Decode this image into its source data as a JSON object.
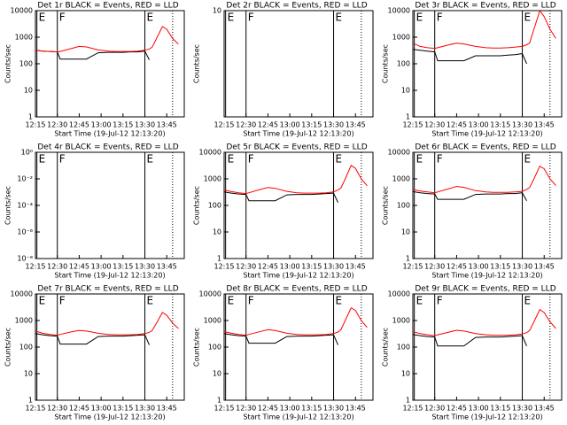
{
  "chart_data": [
    {
      "type": "line",
      "title": "Det 1r BLACK = Events, RED = LLD",
      "x_label": "Start Time (19-Jul-12 12:13:20)",
      "y_label": "Counts/sec",
      "log_y": true,
      "xlim": [
        735,
        837
      ],
      "xticks": [
        {
          "value": 735,
          "label": "12:15"
        },
        {
          "value": 750,
          "label": "12:30"
        },
        {
          "value": 765,
          "label": "12:45"
        },
        {
          "value": 780,
          "label": "13:00"
        },
        {
          "value": 795,
          "label": "13:15"
        },
        {
          "value": 810,
          "label": "13:30"
        },
        {
          "value": 825,
          "label": "13:45"
        }
      ],
      "ylim": [
        1,
        10000
      ],
      "yticks": [
        1,
        10,
        100,
        1000,
        10000
      ],
      "markers": [
        {
          "x": 736,
          "label": "E"
        },
        {
          "x": 750,
          "label": "F"
        },
        {
          "x": 810,
          "label": "E"
        }
      ],
      "dotted_lines": [
        829
      ],
      "x": [
        735,
        740,
        745,
        750,
        752,
        760,
        765,
        770,
        778,
        785,
        790,
        795,
        800,
        805,
        810,
        813,
        815,
        818,
        822,
        825,
        829,
        833
      ],
      "series": [
        {
          "color": "#000000",
          "values": [
            320,
            300,
            290,
            280,
            150,
            150,
            150,
            150,
            260,
            270,
            270,
            270,
            280,
            280,
            300,
            140,
            null,
            null,
            null,
            null,
            null,
            null
          ]
        },
        {
          "color": "#ff0000",
          "values": [
            320,
            300,
            290,
            280,
            290,
            380,
            450,
            430,
            330,
            300,
            290,
            290,
            290,
            300,
            320,
            360,
            420,
            900,
            2500,
            2000,
            900,
            550
          ]
        }
      ]
    },
    {
      "type": "line",
      "title": "Det 2r BLACK = Events, RED = LLD",
      "x_label": "Start Time (19-Jul-12 12:13:20)",
      "y_label": "Counts/sec",
      "log_y": true,
      "xlim": [
        735,
        837
      ],
      "xticks": [
        {
          "value": 735,
          "label": "12:15"
        },
        {
          "value": 750,
          "label": "12:30"
        },
        {
          "value": 765,
          "label": "12:45"
        },
        {
          "value": 780,
          "label": "13:00"
        },
        {
          "value": 795,
          "label": "13:15"
        },
        {
          "value": 810,
          "label": "13:30"
        },
        {
          "value": 825,
          "label": "13:45"
        }
      ],
      "ylim": [
        1,
        10
      ],
      "yticks": [
        10
      ],
      "markers": [
        {
          "x": 736,
          "label": "E"
        },
        {
          "x": 750,
          "label": "F"
        },
        {
          "x": 810,
          "label": "E"
        }
      ],
      "dotted_lines": [
        829
      ],
      "x": [],
      "series": []
    },
    {
      "type": "line",
      "title": "Det 3r BLACK = Events, RED = LLD",
      "x_label": "Start Time (19-Jul-12 12:13:20)",
      "y_label": "Counts/sec",
      "log_y": true,
      "xlim": [
        735,
        837
      ],
      "xticks": [
        {
          "value": 735,
          "label": "12:15"
        },
        {
          "value": 750,
          "label": "12:30"
        },
        {
          "value": 765,
          "label": "12:45"
        },
        {
          "value": 780,
          "label": "13:00"
        },
        {
          "value": 795,
          "label": "13:15"
        },
        {
          "value": 810,
          "label": "13:30"
        },
        {
          "value": 825,
          "label": "13:45"
        }
      ],
      "ylim": [
        1,
        10000
      ],
      "yticks": [
        1,
        10,
        100,
        1000,
        10000
      ],
      "markers": [
        {
          "x": 736,
          "label": "E"
        },
        {
          "x": 750,
          "label": "F"
        },
        {
          "x": 810,
          "label": "E"
        }
      ],
      "dotted_lines": [
        829
      ],
      "x": [
        735,
        740,
        745,
        750,
        752,
        760,
        765,
        770,
        778,
        785,
        790,
        795,
        800,
        805,
        810,
        813,
        815,
        818,
        822,
        825,
        829,
        833
      ],
      "series": [
        {
          "color": "#000000",
          "values": [
            350,
            320,
            300,
            280,
            130,
            130,
            130,
            130,
            200,
            200,
            200,
            200,
            210,
            220,
            240,
            100,
            null,
            null,
            null,
            null,
            null,
            null
          ]
        },
        {
          "color": "#ff0000",
          "values": [
            600,
            450,
            400,
            380,
            400,
            520,
            600,
            560,
            450,
            400,
            390,
            390,
            400,
            420,
            450,
            520,
            600,
            2000,
            10000,
            6000,
            2000,
            900
          ]
        }
      ]
    },
    {
      "type": "line",
      "title": "Det 4r BLACK = Events, RED = LLD",
      "x_label": "Start Time (19-Jul-12 12:13:20)",
      "y_label": "Counts/sec",
      "log_y": true,
      "xlim": [
        735,
        837
      ],
      "xticks": [
        {
          "value": 735,
          "label": "12:15"
        },
        {
          "value": 750,
          "label": "12:30"
        },
        {
          "value": 765,
          "label": "12:45"
        },
        {
          "value": 780,
          "label": "13:00"
        },
        {
          "value": 795,
          "label": "13:15"
        },
        {
          "value": 810,
          "label": "13:30"
        },
        {
          "value": 825,
          "label": "13:45"
        }
      ],
      "ylim": [
        1e-08,
        1
      ],
      "yticks": [
        {
          "value": 1e-08,
          "label": "10⁻⁸"
        },
        {
          "value": 1e-06,
          "label": "10⁻⁶"
        },
        {
          "value": 0.0001,
          "label": "10⁻⁴"
        },
        {
          "value": 0.01,
          "label": "10⁻²"
        },
        {
          "value": 1,
          "label": "10⁰"
        }
      ],
      "markers": [
        {
          "x": 736,
          "label": "E"
        },
        {
          "x": 750,
          "label": "F"
        },
        {
          "x": 810,
          "label": "E"
        }
      ],
      "dotted_lines": [
        829
      ],
      "x": [],
      "series": []
    },
    {
      "type": "line",
      "title": "Det 5r BLACK = Events, RED = LLD",
      "x_label": "Start Time (19-Jul-12 12:13:20)",
      "y_label": "Counts/sec",
      "log_y": true,
      "xlim": [
        735,
        837
      ],
      "xticks": [
        {
          "value": 735,
          "label": "12:15"
        },
        {
          "value": 750,
          "label": "12:30"
        },
        {
          "value": 765,
          "label": "12:45"
        },
        {
          "value": 780,
          "label": "13:00"
        },
        {
          "value": 795,
          "label": "13:15"
        },
        {
          "value": 810,
          "label": "13:30"
        },
        {
          "value": 825,
          "label": "13:45"
        }
      ],
      "ylim": [
        1,
        10000
      ],
      "yticks": [
        1,
        10,
        100,
        1000,
        10000
      ],
      "markers": [
        {
          "x": 736,
          "label": "E"
        },
        {
          "x": 750,
          "label": "F"
        },
        {
          "x": 810,
          "label": "E"
        }
      ],
      "dotted_lines": [
        829
      ],
      "x": [
        735,
        740,
        745,
        750,
        752,
        760,
        765,
        770,
        778,
        785,
        790,
        795,
        800,
        805,
        810,
        813,
        815,
        818,
        822,
        825,
        829,
        833
      ],
      "series": [
        {
          "color": "#000000",
          "values": [
            320,
            290,
            270,
            260,
            150,
            150,
            150,
            150,
            250,
            260,
            260,
            260,
            270,
            280,
            290,
            130,
            null,
            null,
            null,
            null,
            null,
            null
          ]
        },
        {
          "color": "#ff0000",
          "values": [
            380,
            330,
            300,
            280,
            300,
            400,
            470,
            440,
            340,
            300,
            290,
            290,
            290,
            300,
            320,
            380,
            450,
            1000,
            3200,
            2500,
            1000,
            550
          ]
        }
      ]
    },
    {
      "type": "line",
      "title": "Det 6r BLACK = Events, RED = LLD",
      "x_label": "Start Time (19-Jul-12 12:13:20)",
      "y_label": "Counts/sec",
      "log_y": true,
      "xlim": [
        735,
        837
      ],
      "xticks": [
        {
          "value": 735,
          "label": "12:15"
        },
        {
          "value": 750,
          "label": "12:30"
        },
        {
          "value": 765,
          "label": "12:45"
        },
        {
          "value": 780,
          "label": "13:00"
        },
        {
          "value": 795,
          "label": "13:15"
        },
        {
          "value": 810,
          "label": "13:30"
        },
        {
          "value": 825,
          "label": "13:45"
        }
      ],
      "ylim": [
        1,
        10000
      ],
      "yticks": [
        1,
        10,
        100,
        1000,
        10000
      ],
      "markers": [
        {
          "x": 736,
          "label": "E"
        },
        {
          "x": 750,
          "label": "F"
        },
        {
          "x": 810,
          "label": "E"
        }
      ],
      "dotted_lines": [
        829
      ],
      "x": [
        735,
        740,
        745,
        750,
        752,
        760,
        765,
        770,
        778,
        785,
        790,
        795,
        800,
        805,
        810,
        813,
        815,
        818,
        822,
        825,
        829,
        833
      ],
      "series": [
        {
          "color": "#000000",
          "values": [
            330,
            300,
            280,
            270,
            170,
            170,
            170,
            170,
            260,
            270,
            270,
            270,
            280,
            280,
            300,
            150,
            null,
            null,
            null,
            null,
            null,
            null
          ]
        },
        {
          "color": "#ff0000",
          "values": [
            400,
            350,
            320,
            300,
            320,
            430,
            520,
            480,
            360,
            320,
            310,
            310,
            310,
            320,
            340,
            400,
            470,
            1000,
            3000,
            2400,
            1000,
            560
          ]
        }
      ]
    },
    {
      "type": "line",
      "title": "Det 7r BLACK = Events, RED = LLD",
      "x_label": "Start Time (19-Jul-12 12:13:20)",
      "y_label": "Counts/sec",
      "log_y": true,
      "xlim": [
        735,
        837
      ],
      "xticks": [
        {
          "value": 735,
          "label": "12:15"
        },
        {
          "value": 750,
          "label": "12:30"
        },
        {
          "value": 765,
          "label": "12:45"
        },
        {
          "value": 780,
          "label": "13:00"
        },
        {
          "value": 795,
          "label": "13:15"
        },
        {
          "value": 810,
          "label": "13:30"
        },
        {
          "value": 825,
          "label": "13:45"
        }
      ],
      "ylim": [
        1,
        10000
      ],
      "yticks": [
        1,
        10,
        100,
        1000,
        10000
      ],
      "markers": [
        {
          "x": 736,
          "label": "E"
        },
        {
          "x": 750,
          "label": "F"
        },
        {
          "x": 810,
          "label": "E"
        }
      ],
      "dotted_lines": [
        829
      ],
      "x": [
        735,
        740,
        745,
        750,
        752,
        760,
        765,
        770,
        778,
        785,
        790,
        795,
        800,
        805,
        810,
        813,
        815,
        818,
        822,
        825,
        829,
        833
      ],
      "series": [
        {
          "color": "#000000",
          "values": [
            320,
            290,
            270,
            260,
            130,
            130,
            130,
            130,
            250,
            260,
            260,
            260,
            270,
            280,
            290,
            120,
            null,
            null,
            null,
            null,
            null,
            null
          ]
        },
        {
          "color": "#ff0000",
          "values": [
            400,
            330,
            300,
            280,
            300,
            380,
            420,
            400,
            330,
            300,
            290,
            290,
            290,
            300,
            320,
            360,
            420,
            800,
            2000,
            1600,
            800,
            500
          ]
        }
      ]
    },
    {
      "type": "line",
      "title": "Det 8r BLACK = Events, RED = LLD",
      "x_label": "Start Time (19-Jul-12 12:13:20)",
      "y_label": "Counts/sec",
      "log_y": true,
      "xlim": [
        735,
        837
      ],
      "xticks": [
        {
          "value": 735,
          "label": "12:15"
        },
        {
          "value": 750,
          "label": "12:30"
        },
        {
          "value": 765,
          "label": "12:45"
        },
        {
          "value": 780,
          "label": "13:00"
        },
        {
          "value": 795,
          "label": "13:15"
        },
        {
          "value": 810,
          "label": "13:30"
        },
        {
          "value": 825,
          "label": "13:45"
        }
      ],
      "ylim": [
        1,
        10000
      ],
      "yticks": [
        1,
        10,
        100,
        1000,
        10000
      ],
      "markers": [
        {
          "x": 736,
          "label": "E"
        },
        {
          "x": 750,
          "label": "F"
        },
        {
          "x": 810,
          "label": "E"
        }
      ],
      "dotted_lines": [
        829
      ],
      "x": [
        735,
        740,
        745,
        750,
        752,
        760,
        765,
        770,
        778,
        785,
        790,
        795,
        800,
        805,
        810,
        813,
        815,
        818,
        822,
        825,
        829,
        833
      ],
      "series": [
        {
          "color": "#000000",
          "values": [
            320,
            290,
            270,
            260,
            140,
            140,
            140,
            140,
            250,
            260,
            260,
            260,
            270,
            280,
            290,
            120,
            null,
            null,
            null,
            null,
            null,
            null
          ]
        },
        {
          "color": "#ff0000",
          "values": [
            380,
            330,
            300,
            280,
            300,
            390,
            450,
            420,
            330,
            300,
            290,
            290,
            290,
            300,
            320,
            370,
            450,
            1000,
            3000,
            2400,
            1000,
            550
          ]
        }
      ]
    },
    {
      "type": "line",
      "title": "Det 9r BLACK = Events, RED = LLD",
      "x_label": "Start Time (19-Jul-12 12:13:20)",
      "y_label": "Counts/sec",
      "log_y": true,
      "xlim": [
        735,
        837
      ],
      "xticks": [
        {
          "value": 735,
          "label": "12:15"
        },
        {
          "value": 750,
          "label": "12:30"
        },
        {
          "value": 765,
          "label": "12:45"
        },
        {
          "value": 780,
          "label": "13:00"
        },
        {
          "value": 795,
          "label": "13:15"
        },
        {
          "value": 810,
          "label": "13:30"
        },
        {
          "value": 825,
          "label": "13:45"
        }
      ],
      "ylim": [
        1,
        10000
      ],
      "yticks": [
        1,
        10,
        100,
        1000,
        10000
      ],
      "markers": [
        {
          "x": 736,
          "label": "E"
        },
        {
          "x": 750,
          "label": "F"
        },
        {
          "x": 810,
          "label": "E"
        }
      ],
      "dotted_lines": [
        829
      ],
      "x": [
        735,
        740,
        745,
        750,
        752,
        760,
        765,
        770,
        778,
        785,
        790,
        795,
        800,
        805,
        810,
        813,
        815,
        818,
        822,
        825,
        829,
        833
      ],
      "series": [
        {
          "color": "#000000",
          "values": [
            300,
            270,
            250,
            240,
            110,
            110,
            110,
            110,
            230,
            240,
            240,
            240,
            250,
            260,
            270,
            110,
            null,
            null,
            null,
            null,
            null,
            null
          ]
        },
        {
          "color": "#ff0000",
          "values": [
            380,
            320,
            290,
            270,
            290,
            370,
            430,
            400,
            320,
            290,
            280,
            280,
            280,
            290,
            310,
            350,
            420,
            900,
            2600,
            2000,
            900,
            500
          ]
        }
      ]
    }
  ]
}
